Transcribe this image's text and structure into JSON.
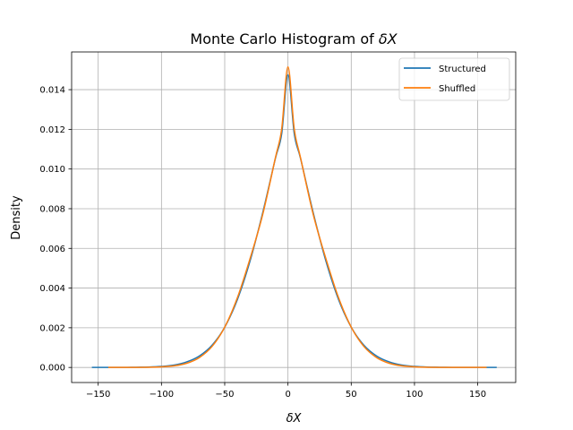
{
  "chart_data": {
    "type": "line",
    "title_prefix": "Monte Carlo Histogram of ",
    "title_symbol": "δX",
    "xlabel": "δX",
    "ylabel": "Density",
    "xlim": [
      -171,
      180
    ],
    "ylim": [
      -0.00076,
      0.0159
    ],
    "xticks": [
      -150,
      -100,
      -50,
      0,
      50,
      100,
      150
    ],
    "xtick_labels": [
      "−150",
      "−100",
      "−50",
      "0",
      "50",
      "100",
      "150"
    ],
    "yticks": [
      0.0,
      0.002,
      0.004,
      0.006,
      0.008,
      0.01,
      0.012,
      0.014
    ],
    "ytick_labels": [
      "0.000",
      "0.002",
      "0.004",
      "0.006",
      "0.008",
      "0.010",
      "0.012",
      "0.014"
    ],
    "grid": true,
    "legend_position": "top-right",
    "series": [
      {
        "name": "Structured",
        "color": "#1f77b4",
        "x": [
          -155,
          -145,
          -130,
          -120,
          -110,
          -100,
          -90,
          -80,
          -70,
          -60,
          -50,
          -40,
          -30,
          -20,
          -10,
          -5,
          0,
          5,
          10,
          20,
          30,
          40,
          50,
          60,
          70,
          80,
          90,
          100,
          110,
          120,
          130,
          140,
          150,
          165
        ],
        "y": [
          0.0,
          0.0,
          0.0,
          1e-05,
          2e-05,
          5e-05,
          0.00012,
          0.00028,
          0.00058,
          0.00112,
          0.00203,
          0.00342,
          0.00536,
          0.00779,
          0.01052,
          0.01176,
          0.01475,
          0.01176,
          0.01052,
          0.00779,
          0.00536,
          0.00342,
          0.00203,
          0.00112,
          0.00058,
          0.00028,
          0.00012,
          5e-05,
          2e-05,
          1e-05,
          0.0,
          0.0,
          0.0,
          0.0
        ]
      },
      {
        "name": "Shuffled",
        "color": "#ff7f0e",
        "x": [
          -142,
          -130,
          -120,
          -110,
          -100,
          -90,
          -80,
          -70,
          -60,
          -50,
          -40,
          -30,
          -20,
          -10,
          -5,
          0,
          5,
          10,
          20,
          30,
          40,
          50,
          60,
          70,
          80,
          90,
          100,
          110,
          120,
          130,
          140,
          157
        ],
        "y": [
          0.0,
          0.0,
          0.0,
          1e-05,
          3e-05,
          8e-05,
          0.00021,
          0.0005,
          0.00106,
          0.00203,
          0.00351,
          0.00548,
          0.0077,
          0.01055,
          0.012,
          0.01515,
          0.012,
          0.01055,
          0.0077,
          0.00548,
          0.00351,
          0.00203,
          0.00106,
          0.0005,
          0.00021,
          8e-05,
          3e-05,
          1e-05,
          0.0,
          0.0,
          0.0,
          0.0
        ]
      }
    ]
  }
}
